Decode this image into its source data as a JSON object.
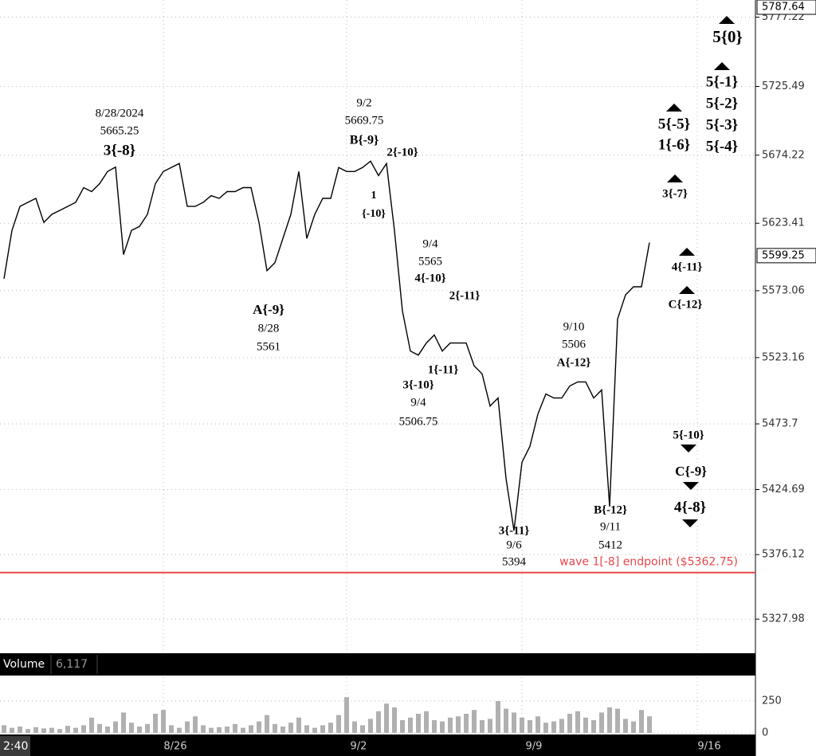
{
  "chart_data": {
    "type": "line",
    "categories": [
      null,
      null,
      null,
      null,
      null,
      null,
      null,
      null,
      null,
      null,
      null,
      null,
      null,
      null,
      null,
      null,
      null,
      null,
      null,
      null,
      "8/26",
      null,
      null,
      null,
      null,
      null,
      null,
      null,
      null,
      null,
      null,
      null,
      null,
      null,
      null,
      null,
      null,
      null,
      null,
      null,
      null,
      null,
      null,
      "9/2",
      null,
      null,
      null,
      null,
      null,
      null,
      null,
      null,
      null,
      null,
      null,
      null,
      null,
      null,
      null,
      null,
      null,
      null,
      null,
      null,
      null,
      "9/9",
      null,
      null,
      null,
      null,
      null,
      null,
      null,
      null,
      null,
      null,
      null,
      null,
      null,
      null,
      null,
      null,
      null,
      null,
      null,
      null,
      null,
      "9/16",
      null,
      null,
      null,
      null,
      null,
      null,
      null
    ],
    "series": [
      {
        "color": "#000000",
        "values": [
          5582,
          5618,
          5636,
          5639,
          5642,
          5624,
          5630,
          5633,
          5636,
          5639,
          5650,
          5647,
          5653,
          5662,
          5665.25,
          5600,
          5618,
          5621,
          5630,
          5653,
          5662,
          5665,
          5668,
          5636,
          5636,
          5639,
          5644,
          5642,
          5647,
          5647,
          5650,
          5650,
          5624,
          5588,
          5594,
          5612,
          5630,
          5662,
          5612,
          5630,
          5642,
          5642,
          5665,
          5662,
          5662,
          5665,
          5669.75,
          5659,
          5668,
          5618,
          5558,
          5528,
          5525,
          5534,
          5540,
          5528,
          5534,
          5534,
          5534,
          5517,
          5511,
          5487,
          5493,
          5433,
          5394,
          5445,
          5457,
          5481,
          5496,
          5493,
          5493,
          5502,
          5505,
          5505,
          5493,
          5499,
          5412,
          5552,
          5570,
          5576,
          5576,
          5609,
          null,
          null,
          null,
          null,
          null,
          null,
          null,
          null,
          null,
          null,
          null,
          null,
          null
        ]
      }
    ],
    "ylim": [
      5305.5,
      5790
    ],
    "yticks": [
      5327.98,
      5376.12,
      5424.69,
      5473.7,
      5523.16,
      5573.06,
      5623.41,
      5674.22,
      5725.49,
      5777.22
    ],
    "grid": true,
    "high_label": 5787.64,
    "last_price": 5599.25,
    "time_label": "2:40",
    "reference_line": {
      "value": 5362.75,
      "label": "wave 1[-8] endpoint ($5362.75)",
      "color": "#e8474c"
    },
    "annotations": [
      [
        "8/28/2024",
        5665.25,
        "3{-8}"
      ],
      [
        "9/2",
        5669.75,
        "B{-9}"
      ],
      [
        "2{-10}"
      ],
      [
        "1",
        "{-10}"
      ],
      [
        "A{-9}",
        "8/28",
        5561
      ],
      [
        "9/4",
        5565,
        "4{-10}"
      ],
      [
        "2{-11}"
      ],
      [
        "1{-11}"
      ],
      [
        "3{-10}",
        "9/4",
        5506.75
      ],
      [
        "9/10",
        5506,
        "A{-12}"
      ],
      [
        "3{-11}",
        "9/6",
        5394
      ],
      [
        "B{-12}",
        "9/11",
        5412
      ],
      [
        "5{0}"
      ],
      [
        "5{-1}",
        "5{-2}",
        "5{-3}",
        "5{-4}"
      ],
      [
        "5{-5}",
        "1{-6}"
      ],
      [
        "3{-7}"
      ],
      [
        "4{-11}"
      ],
      [
        "C{-12}"
      ],
      [
        "5{-10}"
      ],
      [
        "C{-9}"
      ],
      [
        "4{-8}"
      ]
    ],
    "volume": {
      "title": "Volume",
      "last": {
        "value": 6117,
        "label": "6,117"
      },
      "color": "#b0b0b0",
      "ylim": [
        0,
        400
      ],
      "yticks": [
        0,
        250
      ],
      "values": [
        60,
        40,
        50,
        30,
        45,
        35,
        40,
        30,
        55,
        40,
        60,
        120,
        70,
        50,
        90,
        160,
        80,
        50,
        70,
        150,
        180,
        60,
        40,
        90,
        130,
        60,
        40,
        45,
        50,
        70,
        40,
        60,
        90,
        140,
        70,
        50,
        80,
        120,
        60,
        40,
        60,
        80,
        140,
        280,
        90,
        60,
        110,
        170,
        230,
        200,
        100,
        120,
        150,
        170,
        100,
        90,
        120,
        130,
        150,
        180,
        100,
        110,
        250,
        190,
        160,
        120,
        100,
        130,
        80,
        90,
        110,
        150,
        170,
        120,
        100,
        160,
        200,
        190,
        110,
        90,
        180,
        130,
        null,
        null,
        null,
        null,
        null,
        null,
        null,
        null,
        null,
        null,
        null,
        null,
        null
      ]
    }
  }
}
